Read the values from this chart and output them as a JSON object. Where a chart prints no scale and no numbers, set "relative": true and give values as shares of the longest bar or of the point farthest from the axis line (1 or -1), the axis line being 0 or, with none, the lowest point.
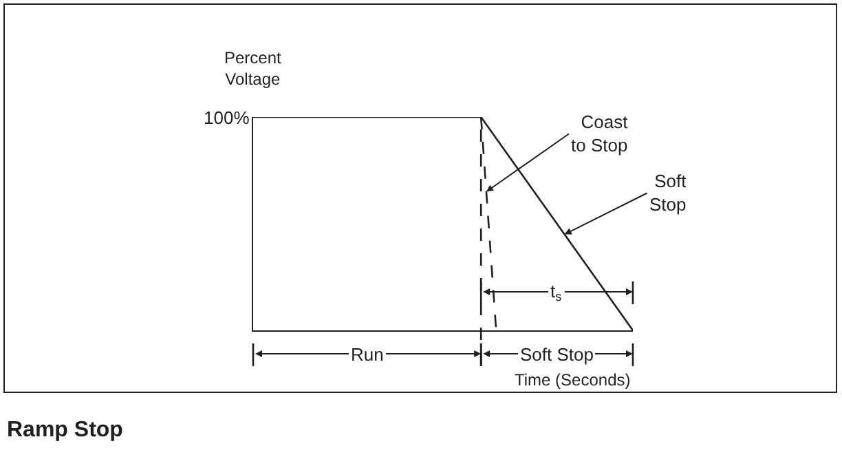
{
  "chart_data": {
    "type": "line",
    "title": "Ramp Stop",
    "xlabel": "Time (Seconds)",
    "ylabel": "Percent\nVoltage",
    "relative": true,
    "marker": "none",
    "categories": [
      null,
      null,
      null,
      null,
      null,
      null,
      null,
      null,
      null,
      null,
      null,
      null,
      null,
      null,
      null,
      null,
      null,
      null,
      null,
      null,
      null,
      null,
      null,
      null,
      null,
      null
    ],
    "series": [
      {
        "color": "#231f20",
        "line_style": "solid",
        "values": [
          1,
          1,
          1,
          1,
          1,
          1,
          1,
          1,
          1,
          1,
          1,
          1,
          1,
          1,
          1,
          1,
          0.9,
          0.8,
          0.7,
          0.6,
          0.5,
          0.4,
          0.3,
          0.2,
          0.1,
          0
        ]
      },
      {
        "color": "#231f20",
        "line_style": "dashed",
        "values": [
          null,
          null,
          null,
          null,
          null,
          null,
          null,
          null,
          null,
          null,
          null,
          null,
          null,
          null,
          null,
          1,
          0,
          null,
          null,
          null,
          null,
          null,
          null,
          null,
          null,
          null
        ]
      }
    ],
    "annotations": [
      "100%",
      "Coast\nto Stop",
      "Soft\nStop",
      "Run",
      "Soft Stop",
      "t$_{s}$"
    ]
  }
}
